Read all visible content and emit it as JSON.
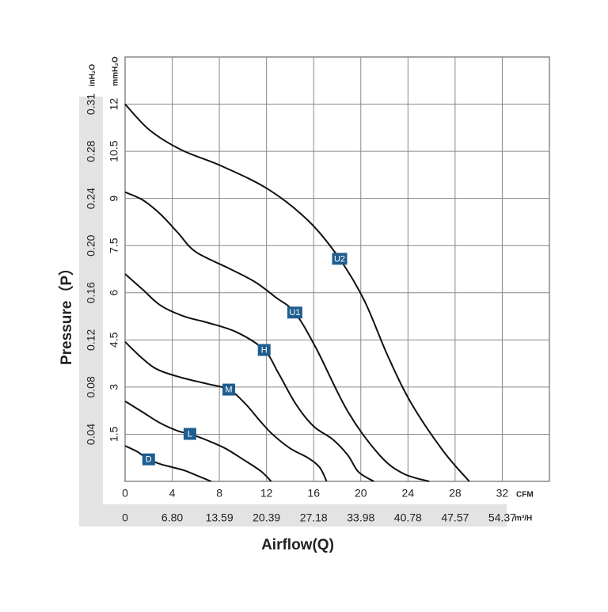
{
  "chart_data": {
    "type": "line",
    "x_label": "Airflow(Q)",
    "y_label": "Pressure（P）",
    "x_unit": "CFM",
    "x2_unit": "m³/H",
    "y_unit": "mmH₂O",
    "y2_unit": "inH₂O",
    "xlim": [
      0,
      36
    ],
    "ylim": [
      0,
      13.5
    ],
    "xticks": [
      0,
      4,
      8,
      12,
      16,
      20,
      24,
      28,
      32
    ],
    "yticks": [
      1.5,
      3,
      4.5,
      6,
      7.5,
      9,
      10.5,
      12
    ],
    "x2_labels": [
      "0",
      "6.80",
      "13.59",
      "20.39",
      "27.18",
      "33.98",
      "40.78",
      "47.57",
      "54.37"
    ],
    "y2_labels": [
      "0.04",
      "0.08",
      "0.12",
      "0.16",
      "0.20",
      "0.24",
      "0.28",
      "0.31"
    ],
    "grid": true,
    "series": [
      {
        "name": "D",
        "color": "#111111",
        "x": [
          0,
          1,
          2,
          3,
          4,
          5,
          6,
          7.3
        ],
        "values": [
          1.13,
          0.95,
          0.7,
          0.55,
          0.45,
          0.35,
          0.2,
          0
        ]
      },
      {
        "name": "L",
        "color": "#111111",
        "x": [
          0,
          1.5,
          3,
          4.5,
          5.5,
          7,
          8.5,
          10,
          11.5,
          12.4
        ],
        "values": [
          2.55,
          2.2,
          1.85,
          1.6,
          1.51,
          1.3,
          1.05,
          0.7,
          0.33,
          0
        ]
      },
      {
        "name": "M",
        "color": "#111111",
        "x": [
          0,
          1.5,
          2.8,
          4.8,
          7,
          8.8,
          10.2,
          11.5,
          12.5,
          14,
          15.5,
          16.5,
          17.1
        ],
        "values": [
          4.44,
          3.9,
          3.55,
          3.3,
          3.1,
          2.92,
          2.47,
          1.9,
          1.5,
          1.05,
          0.75,
          0.45,
          0
        ]
      },
      {
        "name": "H",
        "color": "#111111",
        "x": [
          0,
          1.5,
          3,
          5,
          7,
          9.5,
          11.8,
          13,
          14.5,
          16,
          17.6,
          18.9,
          19.8,
          21.1
        ],
        "values": [
          6.6,
          6.1,
          5.6,
          5.25,
          5.05,
          4.74,
          4.18,
          3.45,
          2.45,
          1.75,
          1.34,
          0.83,
          0.3,
          0
        ]
      },
      {
        "name": "U1",
        "color": "#111111",
        "x": [
          0,
          1.5,
          3,
          4.5,
          6,
          8.9,
          11,
          12.8,
          14.4,
          16.2,
          18.9,
          21.6,
          23.6,
          25.8
        ],
        "values": [
          9.2,
          8.95,
          8.5,
          7.9,
          7.3,
          6.76,
          6.35,
          5.85,
          5.37,
          4.24,
          2.22,
          0.83,
          0.25,
          0
        ]
      },
      {
        "name": "U2",
        "color": "#111111",
        "x": [
          0,
          2.1,
          4.8,
          8.2,
          12.2,
          15.6,
          18.2,
          20.3,
          22.3,
          24.3,
          27,
          29.2
        ],
        "values": [
          12,
          11.17,
          10.54,
          10.03,
          9.28,
          8.27,
          7.08,
          5.75,
          3.98,
          2.47,
          0.96,
          0
        ]
      }
    ]
  }
}
